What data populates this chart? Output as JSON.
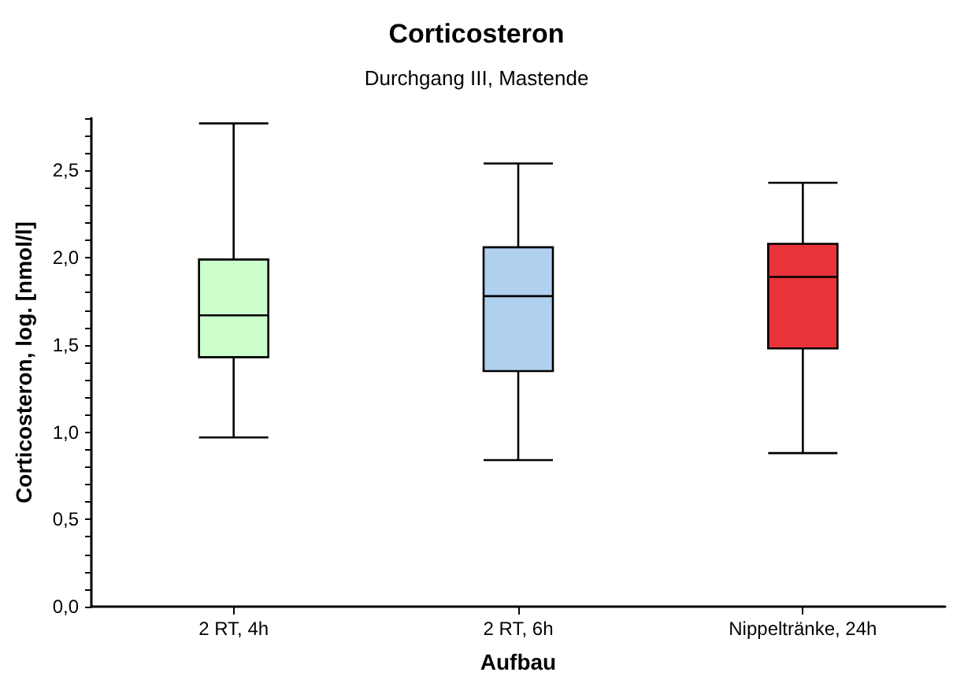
{
  "chart_data": {
    "type": "box",
    "title": "Corticosteron",
    "subtitle": "Durchgang III, Mastende",
    "xlabel": "Aufbau",
    "ylabel": "Corticosteron, log. [nmol/l]",
    "categories": [
      "2 RT, 4h",
      "2 RT, 6h",
      "Nippeltränke, 24h"
    ],
    "colors": [
      "#ccffcc",
      "#b0d0f0",
      "#e8333b"
    ],
    "boxes": [
      {
        "low": 0.97,
        "q1": 1.43,
        "median": 1.67,
        "q3": 1.99,
        "high": 2.77
      },
      {
        "low": 0.84,
        "q1": 1.35,
        "median": 1.78,
        "q3": 2.06,
        "high": 2.54
      },
      {
        "low": 0.88,
        "q1": 1.48,
        "median": 1.89,
        "q3": 2.08,
        "high": 2.43
      }
    ],
    "ylim": [
      0,
      2.8
    ],
    "yticks": [
      {
        "value": 0,
        "label": "0,0"
      },
      {
        "value": 0.1,
        "label": null
      },
      {
        "value": 0.2,
        "label": null
      },
      {
        "value": 0.3,
        "label": null
      },
      {
        "value": 0.4,
        "label": null
      },
      {
        "value": 0.5,
        "label": "0,5"
      },
      {
        "value": 0.6,
        "label": null
      },
      {
        "value": 0.7,
        "label": null
      },
      {
        "value": 0.8,
        "label": null
      },
      {
        "value": 0.9,
        "label": null
      },
      {
        "value": 1,
        "label": "1,0"
      },
      {
        "value": 1.1,
        "label": null
      },
      {
        "value": 1.2,
        "label": null
      },
      {
        "value": 1.3,
        "label": null
      },
      {
        "value": 1.4,
        "label": null
      },
      {
        "value": 1.5,
        "label": "1,5"
      },
      {
        "value": 1.6,
        "label": null
      },
      {
        "value": 1.7,
        "label": null
      },
      {
        "value": 1.8,
        "label": null
      },
      {
        "value": 1.9,
        "label": null
      },
      {
        "value": 2,
        "label": "2,0"
      },
      {
        "value": 2.1,
        "label": null
      },
      {
        "value": 2.2,
        "label": null
      },
      {
        "value": 2.3,
        "label": null
      },
      {
        "value": 2.4,
        "label": null
      },
      {
        "value": 2.5,
        "label": "2,5"
      },
      {
        "value": 2.6,
        "label": null
      },
      {
        "value": 2.7,
        "label": null
      },
      {
        "value": 2.8,
        "label": null
      }
    ],
    "grid": false
  }
}
